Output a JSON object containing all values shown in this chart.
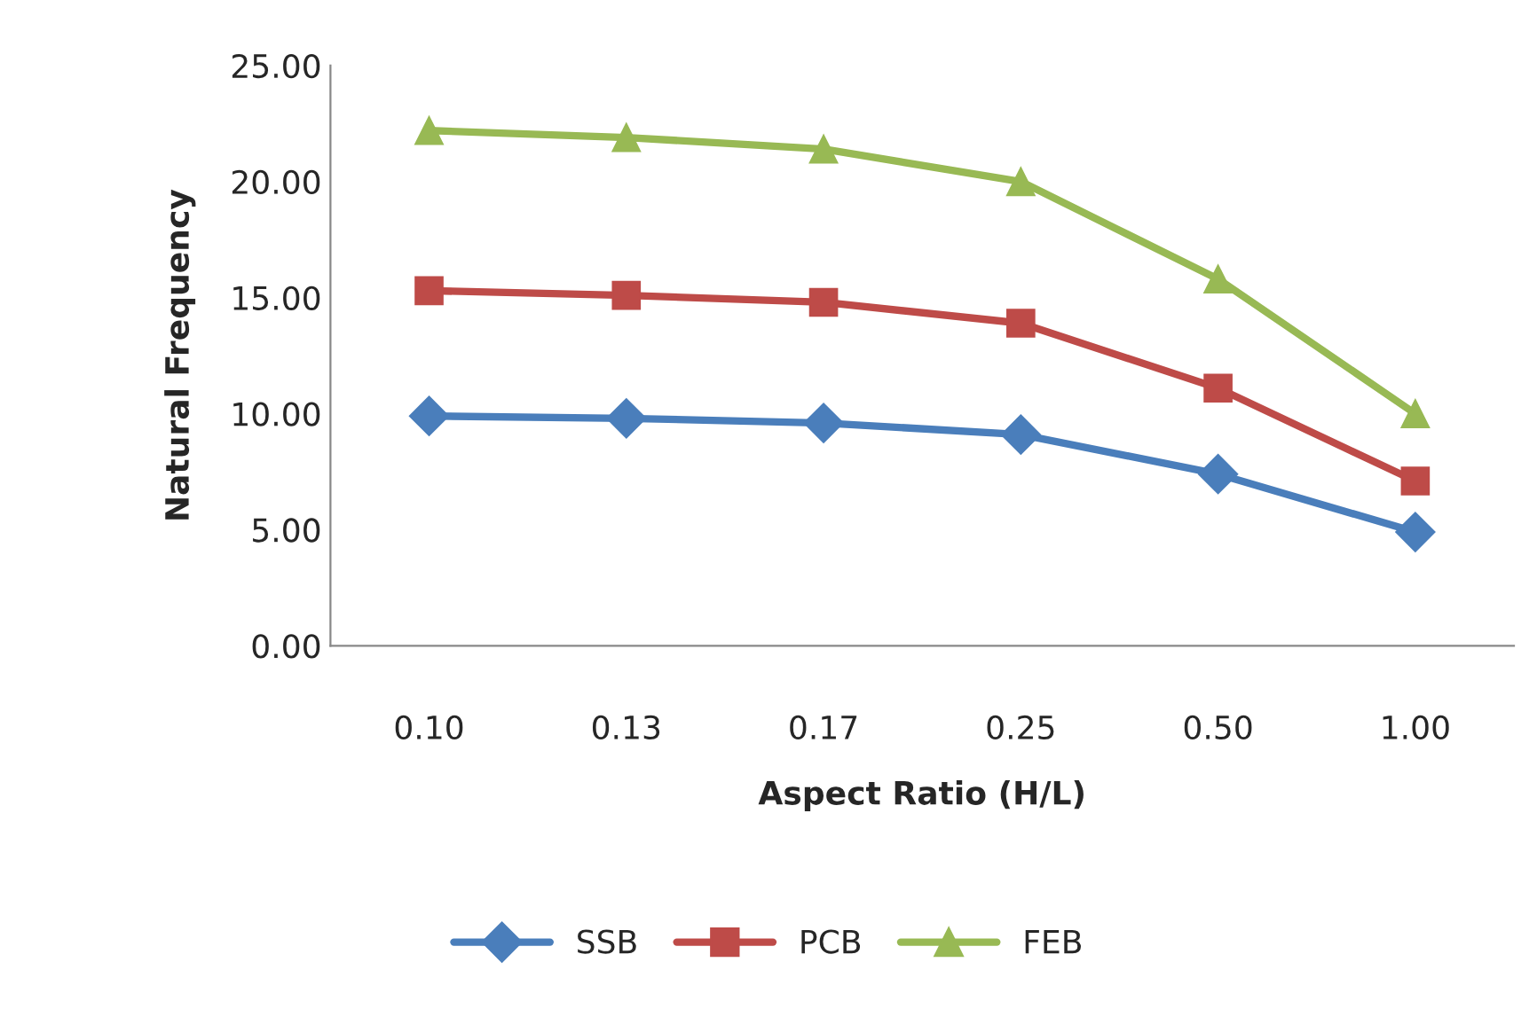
{
  "chart_data": {
    "type": "line",
    "xlabel": "Aspect Ratio (H/L)",
    "ylabel": "Natural Frequency",
    "categories": [
      "0.10",
      "0.13",
      "0.17",
      "0.25",
      "0.50",
      "1.00"
    ],
    "series": [
      {
        "name": "SSB",
        "color": "#4a7ebb",
        "marker": "diamond",
        "values": [
          9.9,
          9.8,
          9.6,
          9.1,
          7.4,
          4.9
        ]
      },
      {
        "name": "PCB",
        "color": "#be4b48",
        "marker": "square",
        "values": [
          15.3,
          15.1,
          14.8,
          13.9,
          11.1,
          7.1
        ]
      },
      {
        "name": "FEB",
        "color": "#98b954",
        "marker": "triangle",
        "values": [
          22.2,
          21.9,
          21.4,
          20.0,
          15.8,
          10.0
        ]
      }
    ],
    "ylim": [
      0,
      25
    ],
    "yticks": [
      {
        "value": 0,
        "label": "0.00"
      },
      {
        "value": 5,
        "label": "5.00"
      },
      {
        "value": 10,
        "label": "10.00"
      },
      {
        "value": 15,
        "label": "15.00"
      },
      {
        "value": 20,
        "label": "20.00"
      },
      {
        "value": 25,
        "label": "25.00"
      }
    ],
    "grid": false,
    "legend": "bottom",
    "line_style": "solid"
  }
}
